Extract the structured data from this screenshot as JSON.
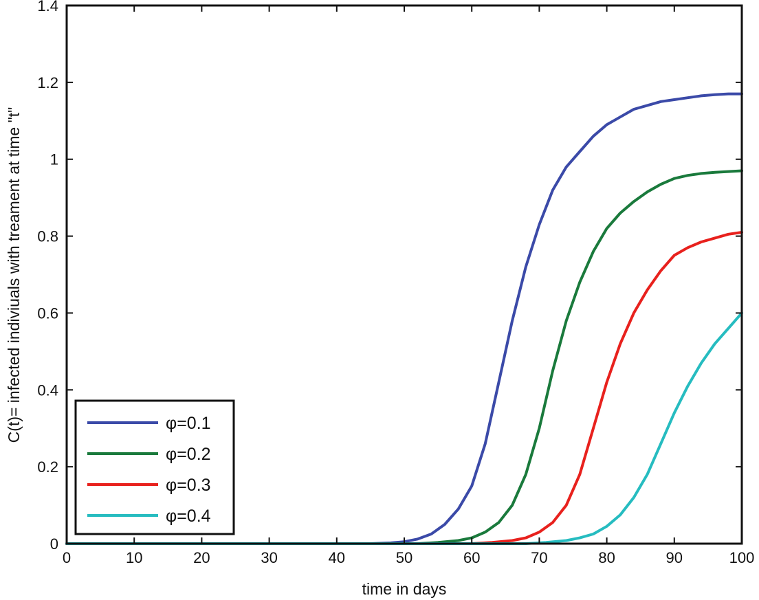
{
  "chart_data": {
    "type": "line",
    "title": "",
    "xlabel": "time in days",
    "ylabel": "C(t)= infected indiviuals with treament at time \"t\"",
    "xlim": [
      0,
      100
    ],
    "ylim": [
      0,
      1.4
    ],
    "grid": false,
    "legend_position": "bottom-left",
    "x_ticks": [
      0,
      10,
      20,
      30,
      40,
      50,
      60,
      70,
      80,
      90,
      100
    ],
    "x_tick_labels": [
      "0",
      "10",
      "20",
      "30",
      "40",
      "50",
      "60",
      "70",
      "80",
      "90",
      "100"
    ],
    "y_ticks": [
      0,
      0.2,
      0.4,
      0.6,
      0.8,
      1.0,
      1.2,
      1.4
    ],
    "y_tick_labels": [
      "0",
      "0.2",
      "0.4",
      "0.6",
      "0.8",
      "1",
      "1.2",
      "1.4"
    ],
    "series": [
      {
        "name": "φ=0.1",
        "color": "#3b4aa8",
        "x": [
          0,
          45,
          48,
          50,
          52,
          54,
          56,
          58,
          60,
          62,
          64,
          66,
          68,
          70,
          72,
          74,
          76,
          78,
          80,
          82,
          84,
          86,
          88,
          90,
          92,
          94,
          96,
          98,
          100
        ],
        "y": [
          0,
          0,
          0.002,
          0.005,
          0.012,
          0.025,
          0.05,
          0.09,
          0.15,
          0.26,
          0.42,
          0.58,
          0.72,
          0.83,
          0.92,
          0.98,
          1.02,
          1.06,
          1.09,
          1.11,
          1.13,
          1.14,
          1.15,
          1.155,
          1.16,
          1.165,
          1.168,
          1.17,
          1.17
        ]
      },
      {
        "name": "φ=0.2",
        "color": "#1a7a3c",
        "x": [
          0,
          52,
          55,
          58,
          60,
          62,
          64,
          66,
          68,
          70,
          72,
          74,
          76,
          78,
          80,
          82,
          84,
          86,
          88,
          90,
          92,
          94,
          96,
          98,
          100
        ],
        "y": [
          0,
          0,
          0.003,
          0.008,
          0.015,
          0.03,
          0.055,
          0.1,
          0.18,
          0.3,
          0.45,
          0.58,
          0.68,
          0.76,
          0.82,
          0.86,
          0.89,
          0.915,
          0.935,
          0.95,
          0.958,
          0.963,
          0.966,
          0.968,
          0.97
        ]
      },
      {
        "name": "φ=0.3",
        "color": "#e8211d",
        "x": [
          0,
          60,
          63,
          66,
          68,
          70,
          72,
          74,
          76,
          78,
          80,
          82,
          84,
          86,
          88,
          90,
          92,
          94,
          96,
          98,
          100
        ],
        "y": [
          0,
          0,
          0.003,
          0.008,
          0.015,
          0.03,
          0.055,
          0.1,
          0.18,
          0.3,
          0.42,
          0.52,
          0.6,
          0.66,
          0.71,
          0.75,
          0.77,
          0.785,
          0.795,
          0.805,
          0.81
        ]
      },
      {
        "name": "φ=0.4",
        "color": "#26bcc0",
        "x": [
          0,
          68,
          71,
          74,
          76,
          78,
          80,
          82,
          84,
          86,
          88,
          90,
          92,
          94,
          96,
          98,
          100
        ],
        "y": [
          0,
          0,
          0.003,
          0.008,
          0.015,
          0.025,
          0.045,
          0.075,
          0.12,
          0.18,
          0.26,
          0.34,
          0.41,
          0.47,
          0.52,
          0.56,
          0.6
        ]
      }
    ]
  }
}
